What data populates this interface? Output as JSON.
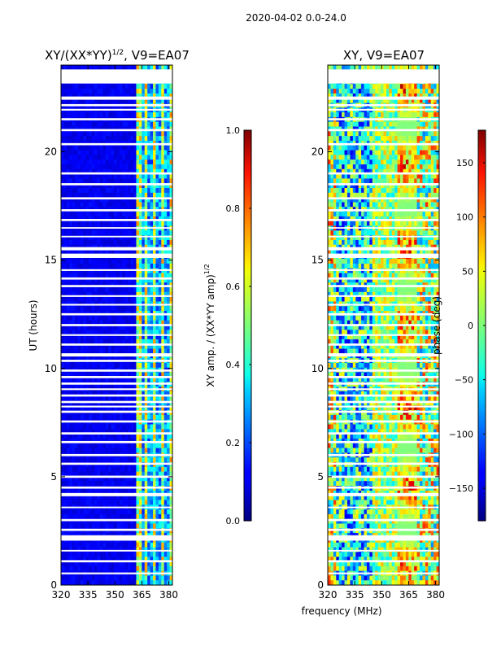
{
  "suptitle": "2020-04-02 0.0-24.0",
  "chart_data": [
    {
      "type": "heatmap",
      "title": "XY/(XX*YY)",
      "title_superscript": "1/2",
      "title_suffix": ", V9=EA07",
      "xlabel": "",
      "ylabel": "UT (hours)",
      "xlim": [
        320,
        382
      ],
      "ylim": [
        0,
        24
      ],
      "xticks": [
        "320",
        "335",
        "350",
        "365",
        "380"
      ],
      "xtick_values": [
        320,
        335,
        350,
        365,
        380
      ],
      "yticks": [
        "0",
        "5",
        "10",
        "15",
        "20"
      ],
      "ytick_values": [
        0,
        5,
        10,
        15,
        20
      ],
      "colorbar": {
        "label": "XY amp. / (XX*YY amp)",
        "label_superscript": "1/2",
        "range": [
          0,
          1
        ],
        "ticks": [
          "0.0",
          "0.2",
          "0.4",
          "0.6",
          "0.8",
          "1.0"
        ],
        "tick_values": [
          0,
          0.2,
          0.4,
          0.6,
          0.8,
          1.0
        ],
        "colormap": "jet"
      }
    },
    {
      "type": "heatmap",
      "title": "XY, V9=EA07",
      "xlabel": "frequency (MHz)",
      "ylabel": "",
      "xlim": [
        320,
        382
      ],
      "ylim": [
        0,
        24
      ],
      "xticks": [
        "320",
        "335",
        "350",
        "365",
        "380"
      ],
      "xtick_values": [
        320,
        335,
        350,
        365,
        380
      ],
      "yticks": [
        "0",
        "5",
        "10",
        "15",
        "20"
      ],
      "ytick_values": [
        0,
        5,
        10,
        15,
        20
      ],
      "colorbar": {
        "label": "phase (deg)",
        "range": [
          -180,
          180
        ],
        "ticks": [
          "−150",
          "−100",
          "−50",
          "0",
          "50",
          "100",
          "150"
        ],
        "tick_values": [
          -150,
          -100,
          -50,
          0,
          50,
          100,
          150
        ],
        "colormap": "jet"
      }
    }
  ],
  "flagged_time_ranges_hours": [
    [
      23.15,
      23.8
    ],
    [
      22.4,
      22.55
    ],
    [
      22.1,
      22.2
    ],
    [
      21.9,
      21.98
    ],
    [
      21.45,
      21.55
    ],
    [
      20.95,
      21.05
    ],
    [
      20.3,
      20.4
    ],
    [
      18.95,
      19.05
    ],
    [
      18.45,
      18.55
    ],
    [
      17.8,
      17.9
    ],
    [
      17.25,
      17.35
    ],
    [
      16.8,
      16.9
    ],
    [
      16.45,
      16.52
    ],
    [
      16.05,
      16.12
    ],
    [
      15.45,
      15.6
    ],
    [
      15.1,
      15.3
    ],
    [
      14.5,
      14.58
    ],
    [
      14.1,
      14.2
    ],
    [
      13.75,
      13.85
    ],
    [
      13.3,
      13.38
    ],
    [
      12.9,
      12.98
    ],
    [
      12.45,
      12.55
    ],
    [
      11.95,
      12.05
    ],
    [
      11.5,
      11.58
    ],
    [
      11.05,
      11.15
    ],
    [
      10.55,
      10.7
    ],
    [
      10.3,
      10.4
    ],
    [
      9.85,
      9.95
    ],
    [
      9.55,
      9.65
    ],
    [
      9.25,
      9.35
    ],
    [
      9.0,
      9.08
    ],
    [
      8.7,
      8.8
    ],
    [
      8.4,
      8.5
    ],
    [
      8.2,
      8.28
    ],
    [
      7.95,
      8.05
    ],
    [
      7.5,
      7.6
    ],
    [
      6.95,
      7.05
    ],
    [
      6.55,
      6.65
    ],
    [
      5.95,
      6.05
    ],
    [
      5.55,
      5.65
    ],
    [
      4.95,
      5.05
    ],
    [
      4.45,
      4.55
    ],
    [
      4.1,
      4.25
    ],
    [
      3.55,
      3.62
    ],
    [
      2.95,
      3.05
    ],
    [
      2.5,
      2.6
    ],
    [
      2.05,
      2.3
    ],
    [
      1.55,
      1.62
    ],
    [
      1.05,
      1.15
    ],
    [
      0.5,
      0.58
    ]
  ]
}
